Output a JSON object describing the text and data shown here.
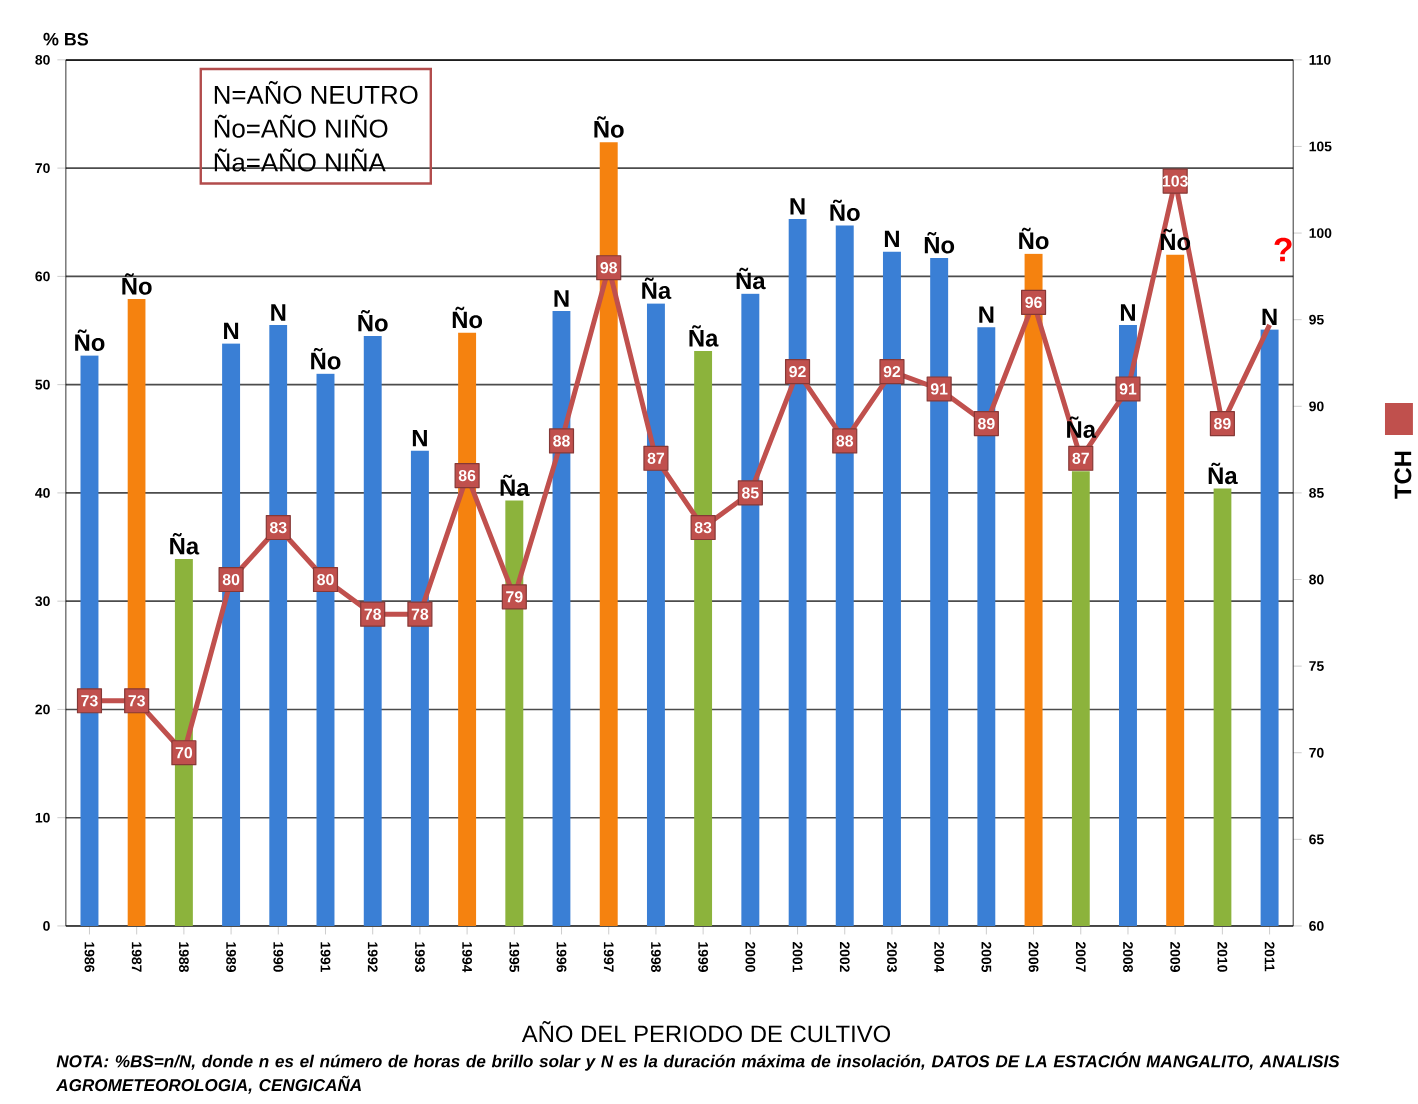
{
  "chart_data": {
    "type": "bar",
    "ylabel": "% BS",
    "xlabel": "AÑO DEL PERIODO DE CULTIVO",
    "categories": [
      "1986",
      "1987",
      "1988",
      "1989",
      "1990",
      "1991",
      "1992",
      "1993",
      "1994",
      "1995",
      "1996",
      "1997",
      "1998",
      "1999",
      "2000",
      "2001",
      "2002",
      "2003",
      "2004",
      "2005",
      "2006",
      "2007",
      "2008",
      "2009",
      "2010",
      "2011"
    ],
    "series": [
      {
        "type": "bar",
        "values": [
          52.7,
          57.9,
          33.9,
          53.8,
          55.5,
          51.0,
          54.5,
          43.9,
          54.8,
          39.3,
          56.8,
          72.4,
          57.5,
          53.1,
          58.4,
          65.3,
          64.7,
          62.3,
          61.7,
          55.3,
          62.1,
          42,
          55.5,
          62.0,
          40.4,
          55.1
        ],
        "colors": [
          "#3a7fd5",
          "#f5820f",
          "#8cb33c",
          "#3a7fd5",
          "#3a7fd5",
          "#3a7fd5",
          "#3a7fd5",
          "#3a7fd5",
          "#f5820f",
          "#8cb33c",
          "#3a7fd5",
          "#f5820f",
          "#3a7fd5",
          "#8cb33c",
          "#3a7fd5",
          "#3a7fd5",
          "#3a7fd5",
          "#3a7fd5",
          "#3a7fd5",
          "#3a7fd5",
          "#f5820f",
          "#8cb33c",
          "#3a7fd5",
          "#f5820f",
          "#8cb33c",
          "#3a7fd5"
        ],
        "value_labels": [
          "Ño",
          "Ño",
          "Ña",
          "N",
          "N",
          "Ño",
          "Ño",
          "N",
          "Ño",
          "Ña",
          "N",
          "Ño",
          "Ña",
          "Ña",
          "Ña",
          "N",
          "Ño",
          "N",
          "Ño",
          "N",
          "Ño",
          "Ña",
          "N",
          "Ño",
          "Ña",
          "N"
        ]
      },
      {
        "type": "line",
        "name": "TCH",
        "axis": "y2",
        "color": "#c0504d",
        "marker": "square",
        "values": [
          73,
          73,
          70,
          80,
          83,
          80,
          78,
          78,
          86,
          79,
          88,
          98,
          87,
          83,
          85,
          92,
          88,
          92,
          91,
          89,
          96,
          87,
          91,
          103,
          89,
          94.7
        ],
        "value_labels": [
          "73",
          "73",
          "70",
          "80",
          "83",
          "80",
          "78",
          "78",
          "86",
          "79",
          "88",
          "98",
          "87",
          "83",
          "85",
          "92",
          "88",
          "92",
          "91",
          "89",
          "96",
          "87",
          "91",
          "103",
          "89",
          null
        ]
      }
    ],
    "ylim": [
      0,
      80
    ],
    "yticks": [
      0,
      10,
      20,
      30,
      40,
      50,
      60,
      70,
      80
    ],
    "y2lim": [
      60,
      110
    ],
    "y2ticks": [
      60,
      65,
      70,
      75,
      80,
      85,
      90,
      95,
      100,
      105,
      110
    ],
    "grid": "y",
    "legend": "right",
    "annotations": [
      "N=AÑO NEUTRO",
      "Ño=AÑO NIÑO",
      "Ña=AÑO NIÑA",
      "?",
      "NOTA: %BS=n/N, donde n es el número de horas de brillo solar y N es la duración máxima de insolación, DATOS DE LA ESTACIÓN MANGALITO, ANALISIS AGROMETEOROLOGIA, CENGICAÑA"
    ]
  }
}
